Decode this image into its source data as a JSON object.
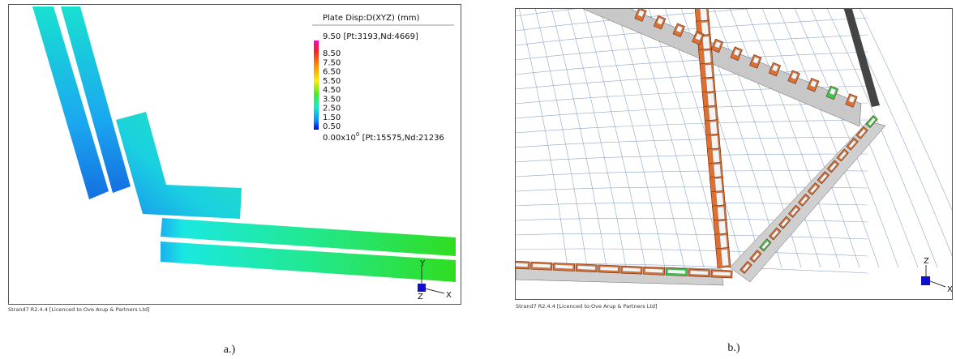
{
  "panel_a": {
    "legend": {
      "title": "Plate Disp:D(XYZ)  (mm)",
      "max_label": "9.50 [Pt:3193,Nd:4669]",
      "levels": [
        "8.50",
        "7.50",
        "6.50",
        "5.50",
        "4.50",
        "3.50",
        "2.50",
        "1.50",
        "0.50"
      ],
      "min_label": {
        "base": "0.00x10",
        "exponent": "0",
        "suffix": " [Pt:15575,Nd:21236"
      }
    },
    "axes": {
      "up": "Y",
      "right": "X",
      "out": "Z"
    },
    "footer": "Strand7 R2.4.4 [Licenced to:Ove Arup & Partners Ltd]",
    "caption": "a.)"
  },
  "panel_b": {
    "axes": {
      "up": "Z",
      "right": "X"
    },
    "footer": "Strand7 R2.4.4 [Licenced to:Ove Arup & Partners Ltd]",
    "caption": "b.)"
  }
}
